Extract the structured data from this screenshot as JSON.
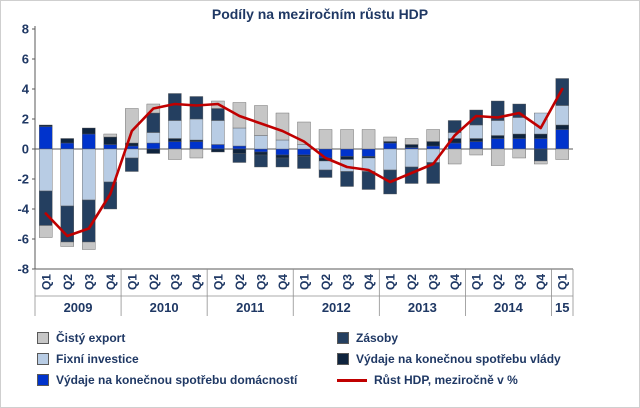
{
  "chart_data": {
    "type": "bar",
    "subtype": "stacked-bars-with-line-overlay",
    "title": "Podíly na meziročním růstu HDP",
    "ylim": [
      -8,
      8
    ],
    "yticks": [
      8,
      6,
      4,
      2,
      0,
      -2,
      -4,
      -6,
      -8
    ],
    "grid": false,
    "legend_position": "bottom",
    "categories": [
      "Q1",
      "Q2",
      "Q3",
      "Q4",
      "Q1",
      "Q2",
      "Q3",
      "Q4",
      "Q1",
      "Q2",
      "Q3",
      "Q4",
      "Q1",
      "Q2",
      "Q3",
      "Q4",
      "Q1",
      "Q2",
      "Q3",
      "Q4",
      "Q1",
      "Q2",
      "Q3",
      "Q4",
      "Q1"
    ],
    "year_groups": [
      {
        "label": "2009",
        "span": 4
      },
      {
        "label": "2010",
        "span": 4
      },
      {
        "label": "2011",
        "span": 4
      },
      {
        "label": "2012",
        "span": 4
      },
      {
        "label": "2013",
        "span": 4
      },
      {
        "label": "2014",
        "span": 4
      },
      {
        "label": "15",
        "span": 1
      }
    ],
    "series": [
      {
        "name": "Výdaje na konečnou spotřebu domácností",
        "color": "#0033CC",
        "values": [
          1.5,
          0.4,
          1.0,
          0.3,
          0.2,
          0.4,
          0.5,
          0.5,
          0.3,
          0.2,
          -0.2,
          -0.4,
          -0.4,
          -0.6,
          -0.5,
          -0.5,
          0.4,
          0.1,
          0.2,
          0.4,
          0.5,
          0.7,
          0.7,
          0.7,
          1.3
        ]
      },
      {
        "name": "Výdaje na konečnou spotřebu vlády",
        "color": "#0F243E",
        "values": [
          0.1,
          0.3,
          0.4,
          0.5,
          0.2,
          -0.3,
          0.2,
          0.1,
          -0.2,
          -0.3,
          -0.2,
          -0.2,
          -0.1,
          -0.2,
          -0.2,
          -0.1,
          0.1,
          0.2,
          0.3,
          0.3,
          0.2,
          0.2,
          0.3,
          0.3,
          0.3
        ]
      },
      {
        "name": "Fixní investice",
        "color": "#B8CCE4",
        "values": [
          -2.8,
          -3.8,
          -3.4,
          -2.2,
          -0.6,
          0.7,
          1.2,
          1.4,
          1.6,
          1.2,
          0.9,
          0.6,
          0.3,
          -0.6,
          -0.8,
          -0.9,
          -1.4,
          -1.2,
          -0.9,
          0.4,
          0.9,
          1.0,
          1.1,
          1.4,
          1.3
        ]
      },
      {
        "name": "Zásoby",
        "color": "#243F60",
        "values": [
          -2.3,
          -2.4,
          -2.8,
          -1.8,
          -0.9,
          1.3,
          1.8,
          1.5,
          0.8,
          -0.6,
          -0.8,
          -0.6,
          -0.8,
          -0.5,
          -1.0,
          -1.2,
          -1.6,
          -1.1,
          -1.4,
          0.8,
          1.0,
          1.3,
          0.9,
          -0.8,
          1.8
        ]
      },
      {
        "name": "Čistý export",
        "color": "#C6C6C6",
        "values": [
          -0.8,
          -0.3,
          -0.5,
          0.2,
          2.3,
          0.6,
          -0.7,
          -0.6,
          0.5,
          1.7,
          2.0,
          1.8,
          1.5,
          1.3,
          1.3,
          1.3,
          0.3,
          0.4,
          0.8,
          -1.0,
          -0.4,
          -1.1,
          -0.6,
          -0.2,
          -0.7
        ]
      }
    ],
    "line_series": {
      "name": "Růst HDP, meziročně v %",
      "color": "#C00000",
      "values": [
        -4.3,
        -5.8,
        -5.3,
        -3.0,
        1.2,
        2.7,
        3.0,
        2.9,
        3.0,
        2.2,
        1.7,
        1.2,
        0.5,
        -0.6,
        -1.2,
        -1.4,
        -2.2,
        -1.6,
        -1.0,
        0.9,
        2.2,
        2.1,
        2.4,
        1.4,
        4.0
      ]
    }
  },
  "legend": {
    "items": [
      {
        "label": "Čistý export",
        "color": "#C6C6C6",
        "marker": "square"
      },
      {
        "label": "Zásoby",
        "color": "#243F60",
        "marker": "square"
      },
      {
        "label": "Fixní investice",
        "color": "#B8CCE4",
        "marker": "square"
      },
      {
        "label": "Výdaje na konečnou spotřebu vlády",
        "color": "#0F243E",
        "marker": "square"
      },
      {
        "label": "Výdaje na konečnou spotřebu domácností",
        "color": "#0033CC",
        "marker": "square"
      },
      {
        "label": "Růst HDP, meziročně v %",
        "color": "#C00000",
        "marker": "line"
      }
    ]
  }
}
